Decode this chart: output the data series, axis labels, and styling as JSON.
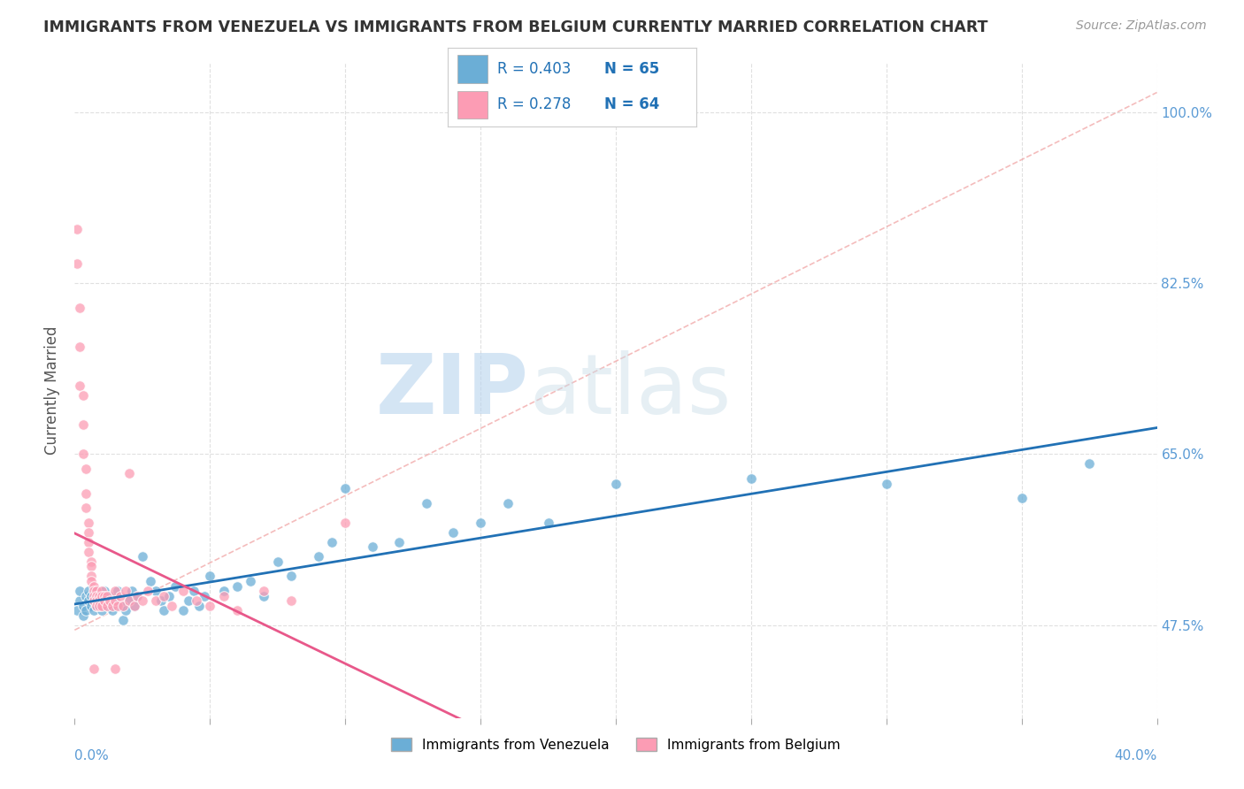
{
  "title": "IMMIGRANTS FROM VENEZUELA VS IMMIGRANTS FROM BELGIUM CURRENTLY MARRIED CORRELATION CHART",
  "source": "Source: ZipAtlas.com",
  "ylabel": "Currently Married",
  "yticks": [
    "47.5%",
    "65.0%",
    "82.5%",
    "100.0%"
  ],
  "ytick_values": [
    0.475,
    0.65,
    0.825,
    1.0
  ],
  "xlim": [
    0.0,
    0.4
  ],
  "ylim": [
    0.38,
    1.05
  ],
  "venezuela_color": "#6baed6",
  "venezuela_line_color": "#2171b5",
  "belgium_color": "#fc9cb4",
  "belgium_line_color": "#e8588a",
  "venezuela_R": 0.403,
  "venezuela_N": 65,
  "belgium_R": 0.278,
  "belgium_N": 64,
  "legend_venezuela_label": "Immigrants from Venezuela",
  "legend_belgium_label": "Immigrants from Belgium",
  "watermark_zip": "ZIP",
  "watermark_atlas": "atlas",
  "ref_line_color": "#f0a0a0",
  "grid_color": "#e0e0e0",
  "venezuela_scatter": [
    [
      0.001,
      0.49
    ],
    [
      0.002,
      0.5
    ],
    [
      0.002,
      0.51
    ],
    [
      0.003,
      0.485
    ],
    [
      0.003,
      0.495
    ],
    [
      0.004,
      0.505
    ],
    [
      0.004,
      0.49
    ],
    [
      0.005,
      0.5
    ],
    [
      0.005,
      0.51
    ],
    [
      0.006,
      0.495
    ],
    [
      0.006,
      0.505
    ],
    [
      0.007,
      0.49
    ],
    [
      0.007,
      0.5
    ],
    [
      0.008,
      0.51
    ],
    [
      0.008,
      0.495
    ],
    [
      0.009,
      0.505
    ],
    [
      0.01,
      0.49
    ],
    [
      0.01,
      0.5
    ],
    [
      0.011,
      0.51
    ],
    [
      0.012,
      0.495
    ],
    [
      0.013,
      0.505
    ],
    [
      0.014,
      0.49
    ],
    [
      0.015,
      0.5
    ],
    [
      0.016,
      0.51
    ],
    [
      0.017,
      0.495
    ],
    [
      0.018,
      0.48
    ],
    [
      0.019,
      0.49
    ],
    [
      0.02,
      0.5
    ],
    [
      0.021,
      0.51
    ],
    [
      0.022,
      0.495
    ],
    [
      0.023,
      0.505
    ],
    [
      0.025,
      0.545
    ],
    [
      0.028,
      0.52
    ],
    [
      0.03,
      0.51
    ],
    [
      0.032,
      0.5
    ],
    [
      0.033,
      0.49
    ],
    [
      0.035,
      0.505
    ],
    [
      0.037,
      0.515
    ],
    [
      0.04,
      0.49
    ],
    [
      0.042,
      0.5
    ],
    [
      0.044,
      0.51
    ],
    [
      0.046,
      0.495
    ],
    [
      0.048,
      0.505
    ],
    [
      0.05,
      0.525
    ],
    [
      0.055,
      0.51
    ],
    [
      0.06,
      0.515
    ],
    [
      0.065,
      0.52
    ],
    [
      0.07,
      0.505
    ],
    [
      0.075,
      0.54
    ],
    [
      0.08,
      0.525
    ],
    [
      0.09,
      0.545
    ],
    [
      0.095,
      0.56
    ],
    [
      0.1,
      0.615
    ],
    [
      0.11,
      0.555
    ],
    [
      0.12,
      0.56
    ],
    [
      0.13,
      0.6
    ],
    [
      0.14,
      0.57
    ],
    [
      0.15,
      0.58
    ],
    [
      0.16,
      0.6
    ],
    [
      0.175,
      0.58
    ],
    [
      0.2,
      0.62
    ],
    [
      0.25,
      0.625
    ],
    [
      0.3,
      0.62
    ],
    [
      0.35,
      0.605
    ],
    [
      0.375,
      0.64
    ]
  ],
  "belgium_scatter": [
    [
      0.001,
      0.88
    ],
    [
      0.001,
      0.845
    ],
    [
      0.002,
      0.8
    ],
    [
      0.002,
      0.76
    ],
    [
      0.002,
      0.72
    ],
    [
      0.003,
      0.71
    ],
    [
      0.003,
      0.68
    ],
    [
      0.003,
      0.65
    ],
    [
      0.004,
      0.635
    ],
    [
      0.004,
      0.61
    ],
    [
      0.004,
      0.595
    ],
    [
      0.005,
      0.58
    ],
    [
      0.005,
      0.57
    ],
    [
      0.005,
      0.56
    ],
    [
      0.005,
      0.55
    ],
    [
      0.006,
      0.54
    ],
    [
      0.006,
      0.535
    ],
    [
      0.006,
      0.525
    ],
    [
      0.006,
      0.52
    ],
    [
      0.007,
      0.515
    ],
    [
      0.007,
      0.51
    ],
    [
      0.007,
      0.505
    ],
    [
      0.007,
      0.5
    ],
    [
      0.008,
      0.51
    ],
    [
      0.008,
      0.505
    ],
    [
      0.008,
      0.5
    ],
    [
      0.008,
      0.495
    ],
    [
      0.009,
      0.505
    ],
    [
      0.009,
      0.5
    ],
    [
      0.009,
      0.495
    ],
    [
      0.01,
      0.51
    ],
    [
      0.01,
      0.505
    ],
    [
      0.01,
      0.495
    ],
    [
      0.011,
      0.505
    ],
    [
      0.011,
      0.5
    ],
    [
      0.012,
      0.495
    ],
    [
      0.012,
      0.505
    ],
    [
      0.013,
      0.5
    ],
    [
      0.014,
      0.495
    ],
    [
      0.015,
      0.51
    ],
    [
      0.015,
      0.5
    ],
    [
      0.016,
      0.495
    ],
    [
      0.017,
      0.505
    ],
    [
      0.018,
      0.495
    ],
    [
      0.019,
      0.51
    ],
    [
      0.02,
      0.5
    ],
    [
      0.022,
      0.495
    ],
    [
      0.023,
      0.505
    ],
    [
      0.025,
      0.5
    ],
    [
      0.027,
      0.51
    ],
    [
      0.03,
      0.5
    ],
    [
      0.033,
      0.505
    ],
    [
      0.036,
      0.495
    ],
    [
      0.04,
      0.51
    ],
    [
      0.045,
      0.5
    ],
    [
      0.05,
      0.495
    ],
    [
      0.055,
      0.505
    ],
    [
      0.06,
      0.49
    ],
    [
      0.07,
      0.51
    ],
    [
      0.08,
      0.5
    ],
    [
      0.02,
      0.63
    ],
    [
      0.1,
      0.58
    ],
    [
      0.015,
      0.43
    ],
    [
      0.007,
      0.43
    ]
  ]
}
